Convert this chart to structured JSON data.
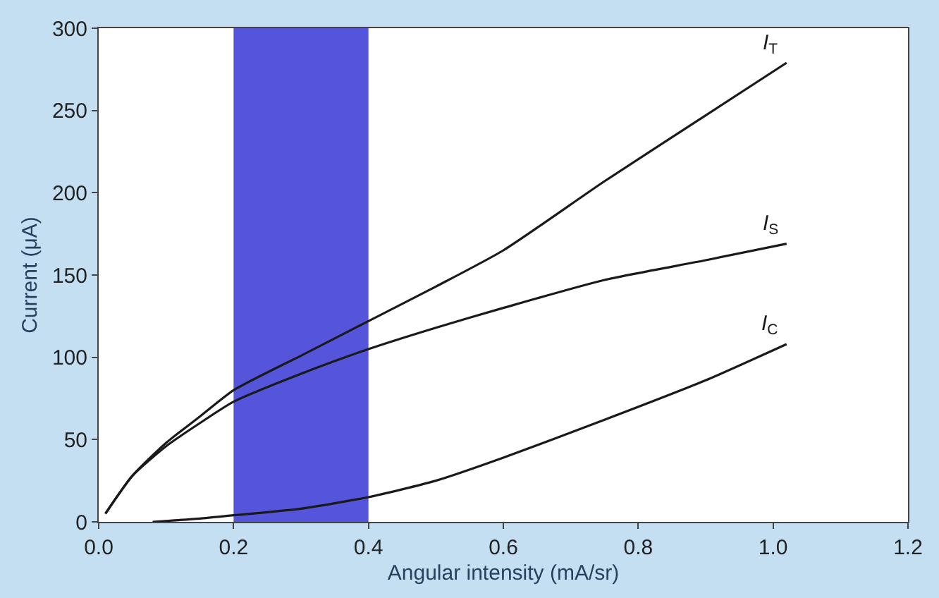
{
  "chart_data": {
    "type": "line",
    "xlabel": "Angular intensity (mA/sr)",
    "ylabel": "Current (μA)",
    "xlim": [
      0,
      1.2
    ],
    "xticks": [
      {
        "value": 0,
        "label": "0.0"
      },
      0.2,
      0.4,
      0.6,
      0.8,
      {
        "value": 1,
        "label": "1.0"
      },
      1.2
    ],
    "ylim": [
      0,
      300
    ],
    "yticks": [
      0,
      50,
      100,
      150,
      200,
      250,
      300
    ],
    "grid": false,
    "legend": false,
    "marker": "none",
    "line_style": "solid",
    "bands": [
      {
        "axis": "x",
        "from": 0.2,
        "to": 0.4,
        "color": "#4c4cd9"
      }
    ],
    "series": [
      {
        "name": "I$_{T}$",
        "color": "#1a1a1a",
        "x": [
          0.01,
          0.05,
          0.1,
          0.15,
          0.2,
          0.3,
          0.4,
          0.5,
          0.6,
          0.75,
          0.9,
          1.02
        ],
        "values": [
          5,
          28,
          48,
          64,
          80,
          101,
          122,
          143,
          165,
          207,
          247,
          279
        ]
      },
      {
        "name": "I$_{S}$",
        "color": "#1a1a1a",
        "x": [
          0.01,
          0.05,
          0.1,
          0.15,
          0.2,
          0.3,
          0.4,
          0.5,
          0.6,
          0.75,
          0.9,
          1.02
        ],
        "values": [
          5,
          28,
          46,
          60,
          73,
          90,
          105,
          118,
          130,
          147,
          159,
          169
        ]
      },
      {
        "name": "I$_{C}$",
        "color": "#1a1a1a",
        "x": [
          0.08,
          0.15,
          0.2,
          0.3,
          0.4,
          0.5,
          0.6,
          0.75,
          0.9,
          1.02
        ],
        "values": [
          0,
          2,
          4,
          8,
          15,
          25,
          39,
          62,
          86,
          108
        ]
      }
    ]
  }
}
